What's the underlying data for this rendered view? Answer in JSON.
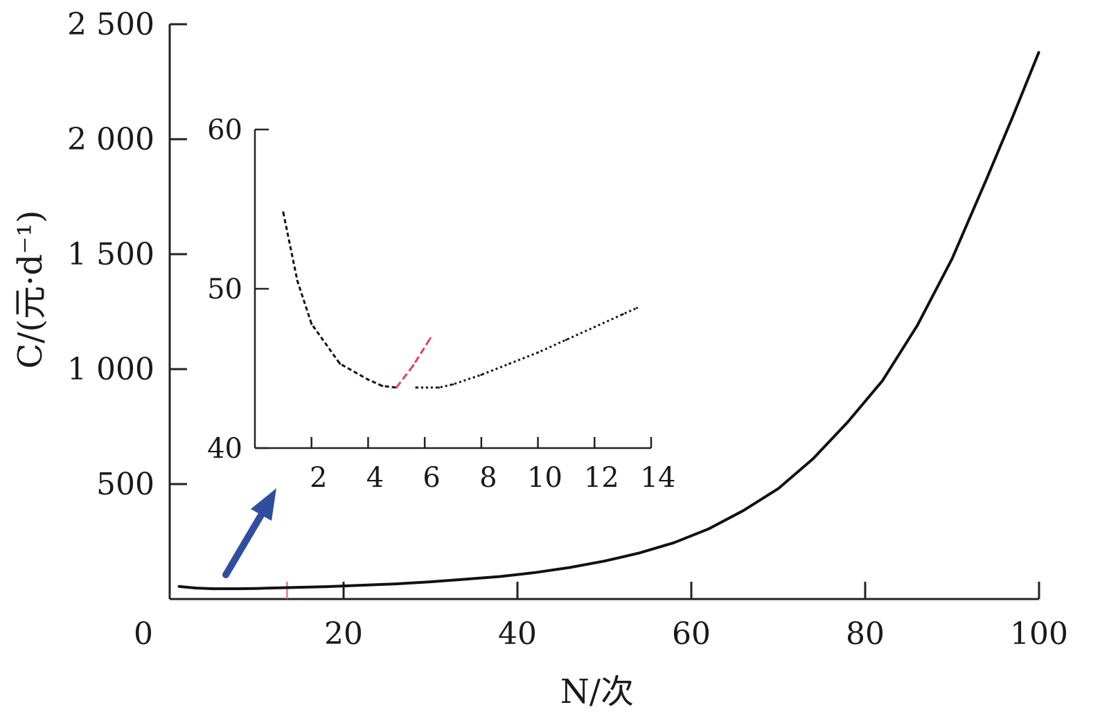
{
  "chart_data": [
    {
      "type": "line",
      "title": "",
      "xlabel": "N/次",
      "ylabel": "C/(元·d⁻¹)",
      "xlim": [
        0,
        100
      ],
      "ylim": [
        0,
        2500
      ],
      "x_ticks": [
        0,
        20,
        40,
        60,
        80,
        100
      ],
      "x_tick_labels": [
        "0",
        "20",
        "40",
        "60",
        "80",
        "100"
      ],
      "y_ticks": [
        500,
        1000,
        1500,
        2000,
        2500
      ],
      "y_tick_labels": [
        "500",
        "1 000",
        "1 500",
        "2 000",
        "2 500"
      ],
      "grid": false,
      "series": [
        {
          "color": "#111111",
          "x": [
            1,
            3,
            5,
            8,
            10,
            14,
            18,
            22,
            26,
            30,
            34,
            38,
            42,
            46,
            50,
            54,
            58,
            62,
            66,
            70,
            74,
            78,
            82,
            86,
            90,
            94,
            97,
            100
          ],
          "y": [
            55,
            48,
            45,
            45,
            46,
            50,
            54,
            60,
            66,
            75,
            86,
            98,
            115,
            137,
            165,
            200,
            245,
            305,
            385,
            480,
            610,
            770,
            950,
            1190,
            1480,
            1830,
            2100,
            2380
          ]
        }
      ],
      "marker_line": {
        "x": 13.5,
        "color": "#e06070"
      },
      "arrow_color": "#2f4f9e"
    },
    {
      "type": "line",
      "title": "",
      "xlabel": "",
      "ylabel": "",
      "xlim": [
        0,
        14
      ],
      "ylim": [
        40,
        60
      ],
      "x_ticks": [
        2,
        4,
        6,
        8,
        10,
        12,
        14
      ],
      "x_tick_labels": [
        "2",
        "4",
        "6",
        "8",
        "10",
        "12",
        "14"
      ],
      "y_ticks": [
        40,
        50,
        60
      ],
      "y_tick_labels": [
        "40",
        "50",
        "60"
      ],
      "grid": false,
      "series": [
        {
          "color": "#111111",
          "x": [
            1,
            1.5,
            2,
            3,
            4,
            4.5,
            5
          ],
          "y": [
            54.8,
            50.5,
            47.8,
            45.3,
            44.3,
            43.9,
            43.8
          ]
        },
        {
          "color": "#e0405a",
          "x": [
            5,
            5.6,
            6.2
          ],
          "y": [
            43.8,
            45.2,
            46.9
          ]
        },
        {
          "color": "#111111",
          "x": [
            5.7,
            6.5,
            7,
            8,
            9,
            10,
            11,
            12,
            13,
            13.5
          ],
          "y": [
            43.8,
            43.8,
            44.0,
            44.6,
            45.3,
            46.0,
            46.8,
            47.6,
            48.4,
            48.8
          ]
        }
      ]
    }
  ]
}
